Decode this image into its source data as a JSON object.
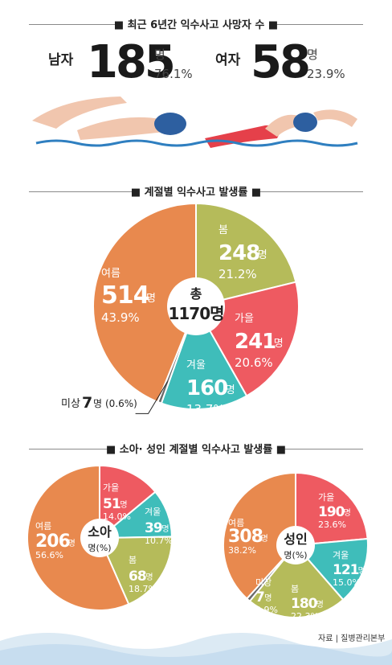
{
  "header": {
    "title": "■ 최근 6년간 익수사고 사망자 수 ■",
    "male": {
      "label": "남자",
      "count": "185",
      "unit": "명",
      "pct": "76.1%"
    },
    "female": {
      "label": "여자",
      "count": "58",
      "unit": "명",
      "pct": "23.9%"
    }
  },
  "season_title": "■ 계절별 익수사고 발생률 ■",
  "child_adult_title": "■ 소아· 성인 계절별 익수사고 발생률 ■",
  "source": "자료 | 질병관리본부",
  "colors": {
    "orange": "#E8894E",
    "olive": "#B5BB5A",
    "red": "#EE5A61",
    "teal": "#3FBDBA",
    "gray": "#6A6A6A",
    "cap": "#2D5FA0",
    "skin": "#F1C6AE",
    "wave": "#2F7FC0"
  },
  "chart_data": [
    {
      "type": "pie",
      "title": "계절별 익수사고 발생률",
      "center_label": "총",
      "center_value": "1170명",
      "slices": [
        {
          "label": "봄",
          "value": 248,
          "unit": "명",
          "pct": "21.2%"
        },
        {
          "label": "가을",
          "value": 241,
          "unit": "명",
          "pct": "20.6%"
        },
        {
          "label": "겨울",
          "value": 160,
          "unit": "명",
          "pct": "13.7%"
        },
        {
          "label": "미상",
          "value": 7,
          "unit": "명",
          "pct": "(0.6%)"
        },
        {
          "label": "여름",
          "value": 514,
          "unit": "명",
          "pct": "43.9%"
        }
      ]
    },
    {
      "type": "pie",
      "title": "소아",
      "center_label": "소아",
      "center_sub": "명(%)",
      "slices": [
        {
          "label": "가을",
          "value": 51,
          "unit": "명",
          "pct": "14.0%"
        },
        {
          "label": "겨울",
          "value": 39,
          "unit": "명",
          "pct": "10.7%"
        },
        {
          "label": "봄",
          "value": 68,
          "unit": "명",
          "pct": "18.7%"
        },
        {
          "label": "여름",
          "value": 206,
          "unit": "명",
          "pct": "56.6%"
        }
      ]
    },
    {
      "type": "pie",
      "title": "성인",
      "center_label": "성인",
      "center_sub": "명(%)",
      "slices": [
        {
          "label": "가을",
          "value": 190,
          "unit": "명",
          "pct": "23.6%"
        },
        {
          "label": "겨울",
          "value": 121,
          "unit": "명",
          "pct": "15.0%"
        },
        {
          "label": "봄",
          "value": 180,
          "unit": "명",
          "pct": "22.3%"
        },
        {
          "label": "미상",
          "value": 7,
          "unit": "명",
          "pct": "0.9%"
        },
        {
          "label": "여름",
          "value": 308,
          "unit": "명",
          "pct": "38.2%"
        }
      ]
    }
  ]
}
